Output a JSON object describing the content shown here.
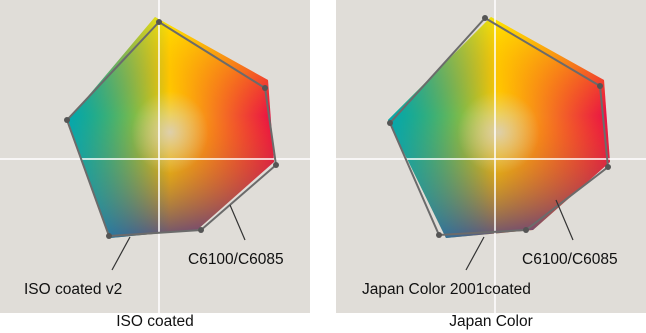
{
  "panels": [
    {
      "caption": "ISO coated",
      "printer_label": "C6100/C6085",
      "standard_label": "ISO coated v2"
    },
    {
      "caption": "Japan Color",
      "printer_label": "C6100/C6085",
      "standard_label": "Japan Color 2001coated"
    }
  ],
  "colors": {
    "background": "#e0ddd8",
    "axes": "#ffffff",
    "outline": "#6b6b6b"
  }
}
